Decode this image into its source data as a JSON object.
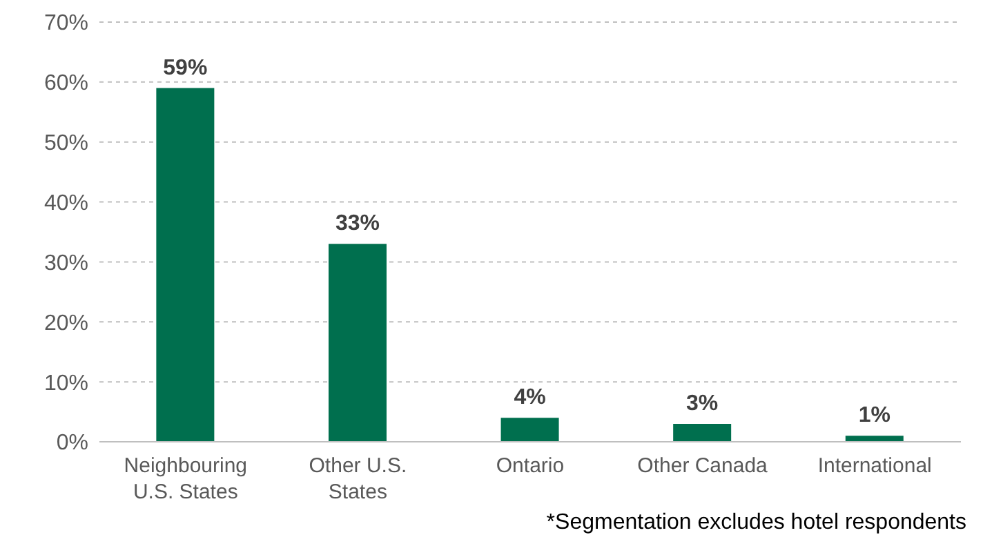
{
  "chart_data": {
    "type": "bar",
    "categories": [
      "Neighbouring U.S. States",
      "Other U.S. States",
      "Ontario",
      "Other Canada",
      "International"
    ],
    "values": [
      59,
      33,
      4,
      3,
      1
    ],
    "color": "#006f4e",
    "data_labels": true,
    "value_labels": [
      "59%",
      "33%",
      "4%",
      "3%",
      "1%"
    ],
    "ylim": [
      0,
      70
    ],
    "yticks": [
      {
        "value": 0,
        "label": "0%"
      },
      {
        "value": 10,
        "label": "10%"
      },
      {
        "value": 20,
        "label": "20%"
      },
      {
        "value": 30,
        "label": "30%"
      },
      {
        "value": 40,
        "label": "40%"
      },
      {
        "value": 50,
        "label": "50%"
      },
      {
        "value": 60,
        "label": "60%"
      },
      {
        "value": 70,
        "label": "70%"
      }
    ],
    "grid": "y",
    "annotations": [
      "*Segmentation excludes hotel respondents"
    ]
  }
}
